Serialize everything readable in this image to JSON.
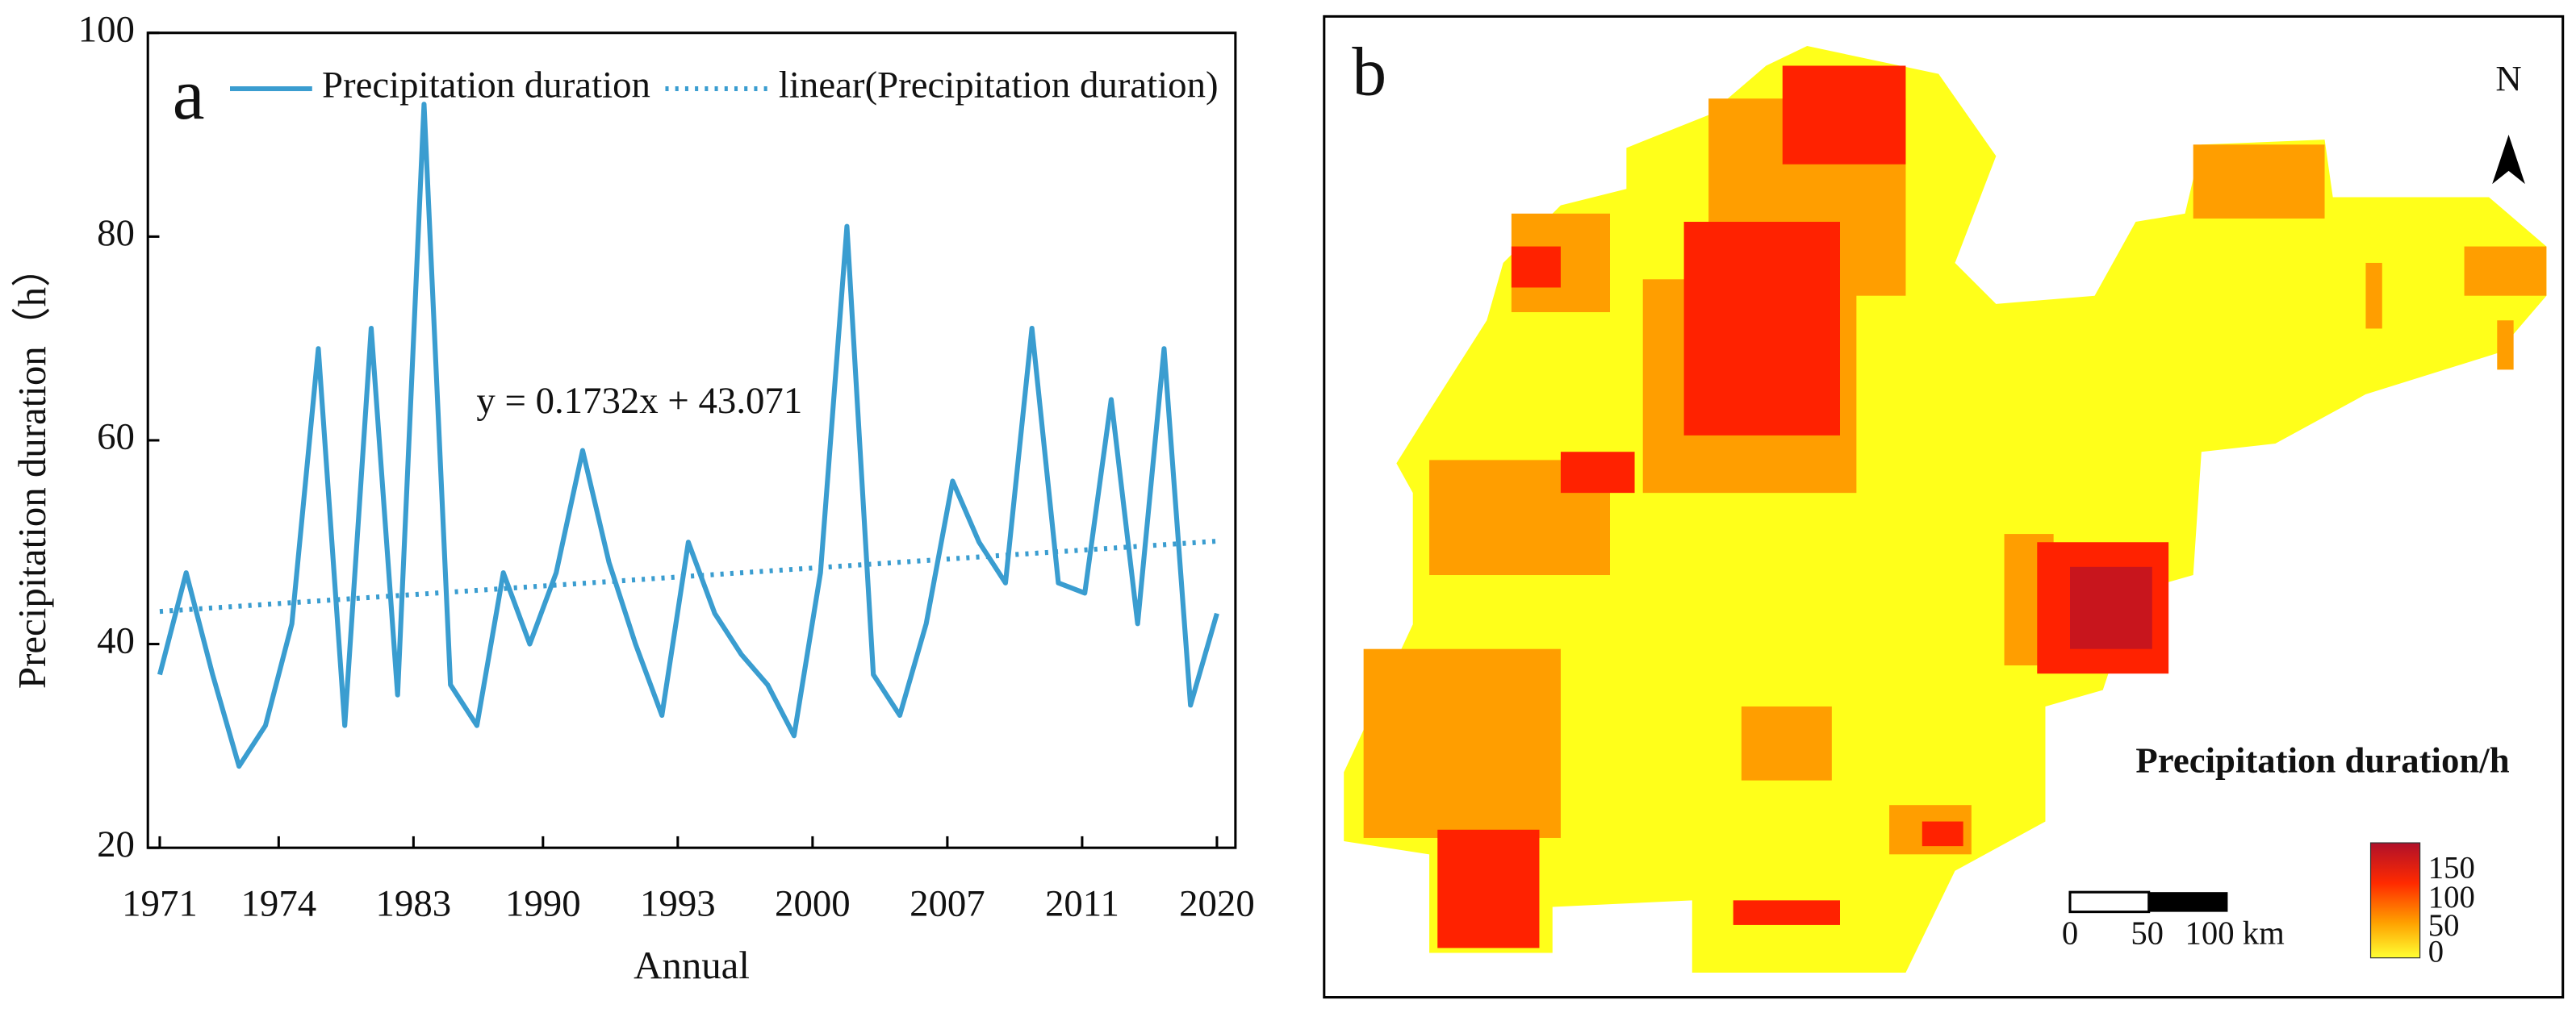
{
  "chart_data": [
    {
      "type": "line",
      "panel_label": "a",
      "y_label": "Precipitation duration（h）",
      "x_label": "Annual",
      "annotation": "y = 0.1732x + 43.071",
      "xlim": [
        -0.45,
        40.7
      ],
      "xticks": [
        {
          "value": 0,
          "label": "1971"
        },
        {
          "value": 4.5,
          "label": "1974"
        },
        {
          "value": 9.6,
          "label": "1983"
        },
        {
          "value": 14.5,
          "label": "1990"
        },
        {
          "value": 19.6,
          "label": "1993"
        },
        {
          "value": 24.7,
          "label": "2000"
        },
        {
          "value": 29.8,
          "label": "2007"
        },
        {
          "value": 34.9,
          "label": "2011"
        },
        {
          "value": 40,
          "label": "2020"
        }
      ],
      "ylim": [
        20,
        100
      ],
      "yticks": [
        20,
        40,
        60,
        80,
        100
      ],
      "grid": false,
      "series": [
        {
          "name": "Precipitation duration",
          "color": "#3a9dd0",
          "style": "solid",
          "values": [
            37,
            47,
            37,
            28,
            32,
            42,
            69,
            32,
            71,
            35,
            93,
            36,
            32,
            47,
            40,
            47,
            59,
            48,
            40,
            33,
            50,
            43,
            39,
            36,
            31,
            47,
            81,
            37,
            33,
            42,
            56,
            50,
            46,
            71,
            46,
            45,
            64,
            42,
            69,
            34,
            43
          ]
        },
        {
          "name": "linear(Precipitation duration)",
          "color": "#3a9dd0",
          "style": "dotted",
          "x": [
            0,
            40
          ],
          "values": [
            43.2,
            50.1
          ]
        }
      ]
    }
  ],
  "map": {
    "panel_label": "b",
    "north": "N",
    "legend_title": "Precipitation duration/h",
    "legend_ticks": [
      "150",
      "100",
      "50",
      "0"
    ],
    "scale_labels": [
      "0",
      "50",
      "100 km"
    ]
  }
}
